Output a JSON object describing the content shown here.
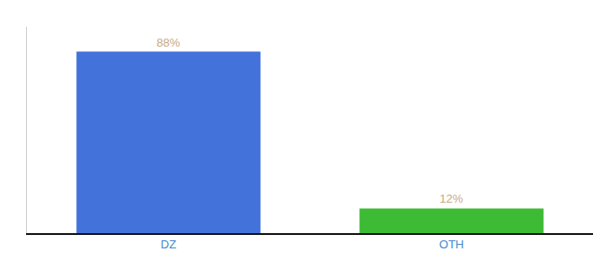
{
  "chart_data": {
    "type": "bar",
    "categories": [
      "DZ",
      "OTH"
    ],
    "values": [
      88,
      12
    ],
    "value_labels": [
      "88%",
      "12%"
    ],
    "data_labels": true,
    "colors": [
      "#4472db",
      "#3dbb35"
    ],
    "ylim": [
      0,
      100
    ],
    "tick_labels": "x",
    "grid": false
  }
}
